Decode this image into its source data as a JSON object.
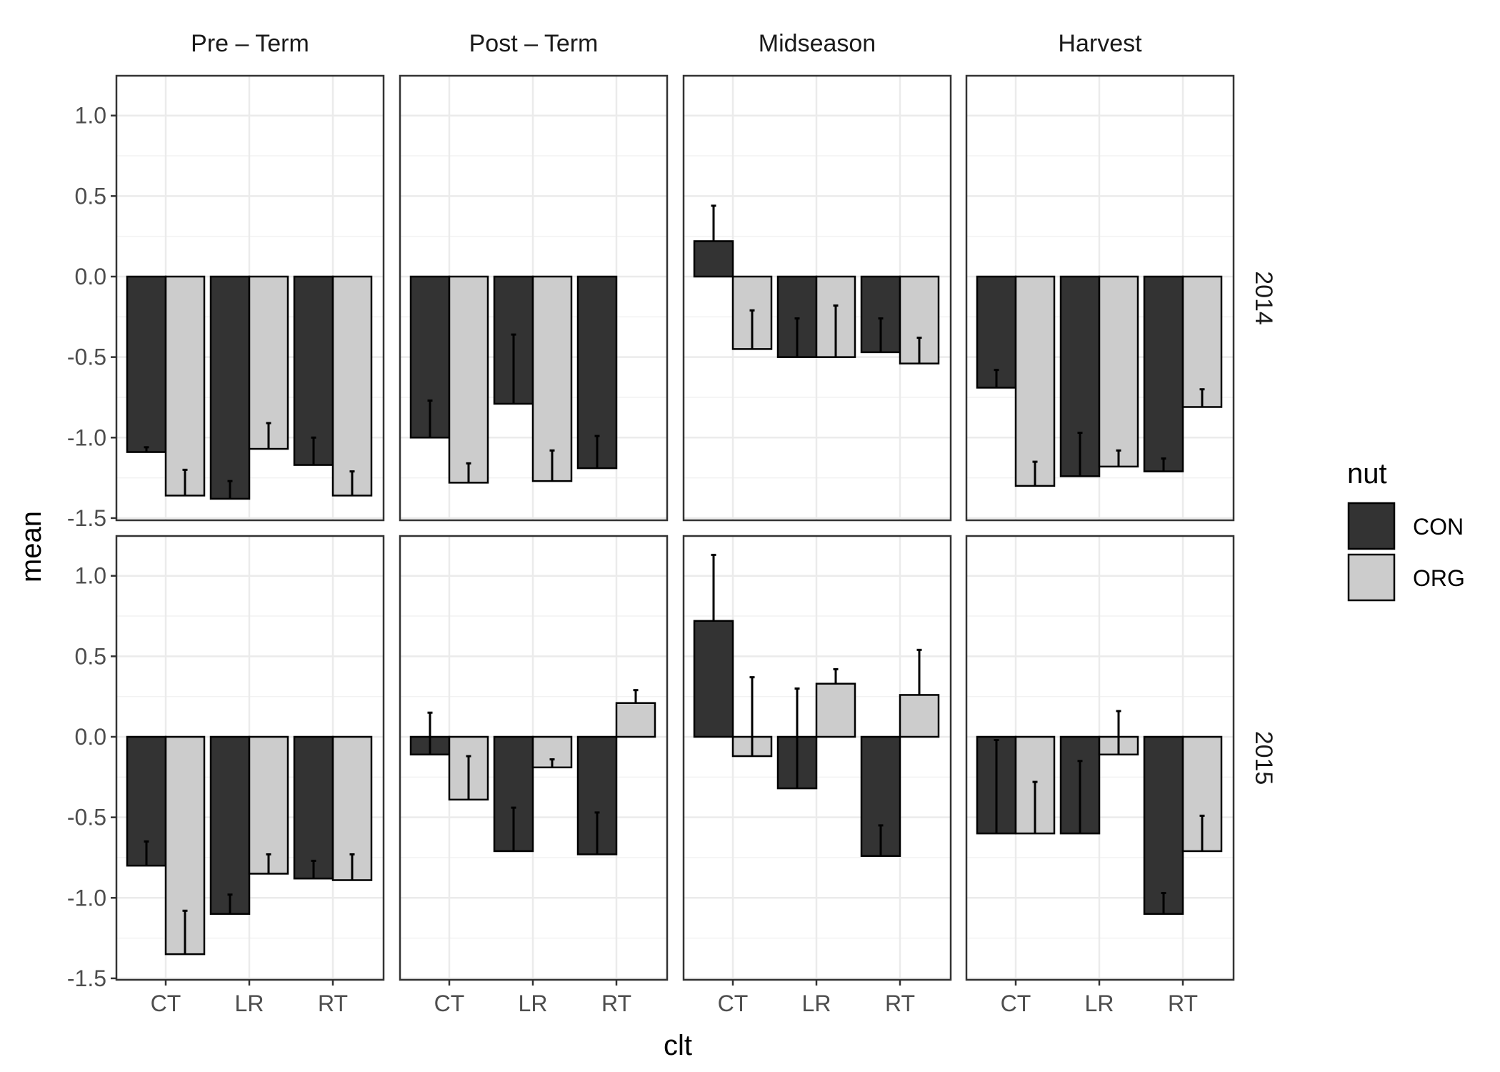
{
  "chart_data": {
    "type": "bar",
    "title": "",
    "xlabel": "clt",
    "ylabel": "mean",
    "ylim": [
      -1.5,
      1.25
    ],
    "y_ticks": [
      "1.0",
      "0.5",
      "0.0",
      "-0.5",
      "-1.0",
      "-1.5"
    ],
    "y_tick_values": [
      1.0,
      0.5,
      0.0,
      -0.5,
      -1.0,
      -1.5
    ],
    "grid": true,
    "facet_columns": [
      "Pre – Term",
      "Post – Term",
      "Midseason",
      "Harvest"
    ],
    "facet_rows": [
      "2014",
      "2015"
    ],
    "categories": [
      "CT",
      "LR",
      "RT"
    ],
    "legend": {
      "title": "nut",
      "position": "right",
      "entries": [
        {
          "name": "CON",
          "color": "#333333"
        },
        {
          "name": "ORG",
          "color": "#cccccc"
        }
      ]
    },
    "panels": [
      {
        "column": "Pre – Term",
        "row": "2014",
        "series": [
          {
            "name": "CON",
            "values": [
              -1.09,
              -1.38,
              -1.17
            ],
            "error_bar_ends": [
              -1.06,
              -1.27,
              -1.0
            ]
          },
          {
            "name": "ORG",
            "values": [
              -1.36,
              -1.07,
              -1.36
            ],
            "error_bar_ends": [
              -1.2,
              -0.91,
              -1.21
            ]
          }
        ]
      },
      {
        "column": "Post – Term",
        "row": "2014",
        "series": [
          {
            "name": "CON",
            "values": [
              -1.0,
              -0.79,
              -1.19
            ],
            "error_bar_ends": [
              -0.77,
              -0.36,
              -0.99
            ]
          },
          {
            "name": "ORG",
            "values": [
              -1.28,
              -1.27,
              null
            ],
            "error_bar_ends": [
              -1.16,
              -1.08,
              null
            ]
          }
        ]
      },
      {
        "column": "Midseason",
        "row": "2014",
        "series": [
          {
            "name": "CON",
            "values": [
              0.22,
              -0.5,
              -0.47
            ],
            "error_bar_ends": [
              0.44,
              -0.26,
              -0.26
            ]
          },
          {
            "name": "ORG",
            "values": [
              -0.45,
              -0.5,
              -0.54
            ],
            "error_bar_ends": [
              -0.21,
              -0.18,
              -0.38
            ]
          }
        ]
      },
      {
        "column": "Harvest",
        "row": "2014",
        "series": [
          {
            "name": "CON",
            "values": [
              -0.69,
              -1.24,
              -1.21
            ],
            "error_bar_ends": [
              -0.58,
              -0.97,
              -1.13
            ]
          },
          {
            "name": "ORG",
            "values": [
              -1.3,
              -1.18,
              -0.81
            ],
            "error_bar_ends": [
              -1.15,
              -1.08,
              -0.7
            ]
          }
        ]
      },
      {
        "column": "Pre – Term",
        "row": "2015",
        "series": [
          {
            "name": "CON",
            "values": [
              -0.8,
              -1.1,
              -0.88
            ],
            "error_bar_ends": [
              -0.65,
              -0.98,
              -0.77
            ]
          },
          {
            "name": "ORG",
            "values": [
              -1.35,
              -0.85,
              -0.89
            ],
            "error_bar_ends": [
              -1.08,
              -0.73,
              -0.73
            ]
          }
        ]
      },
      {
        "column": "Post – Term",
        "row": "2015",
        "series": [
          {
            "name": "CON",
            "values": [
              -0.11,
              -0.71,
              -0.73
            ],
            "error_bar_ends": [
              0.15,
              -0.44,
              -0.47
            ]
          },
          {
            "name": "ORG",
            "values": [
              -0.39,
              -0.19,
              0.21
            ],
            "error_bar_ends": [
              -0.12,
              -0.14,
              0.29
            ]
          }
        ]
      },
      {
        "column": "Midseason",
        "row": "2015",
        "series": [
          {
            "name": "CON",
            "values": [
              0.72,
              -0.32,
              -0.74
            ],
            "error_bar_ends": [
              1.13,
              0.3,
              -0.55
            ]
          },
          {
            "name": "ORG",
            "values": [
              -0.12,
              0.33,
              0.26
            ],
            "error_bar_ends": [
              0.37,
              0.42,
              0.54
            ]
          }
        ]
      },
      {
        "column": "Harvest",
        "row": "2015",
        "series": [
          {
            "name": "CON",
            "values": [
              -0.6,
              -0.6,
              -1.1
            ],
            "error_bar_ends": [
              -0.02,
              -0.15,
              -0.97
            ]
          },
          {
            "name": "ORG",
            "values": [
              -0.6,
              -0.11,
              -0.71
            ],
            "error_bar_ends": [
              -0.28,
              0.16,
              -0.49
            ]
          }
        ]
      }
    ]
  }
}
